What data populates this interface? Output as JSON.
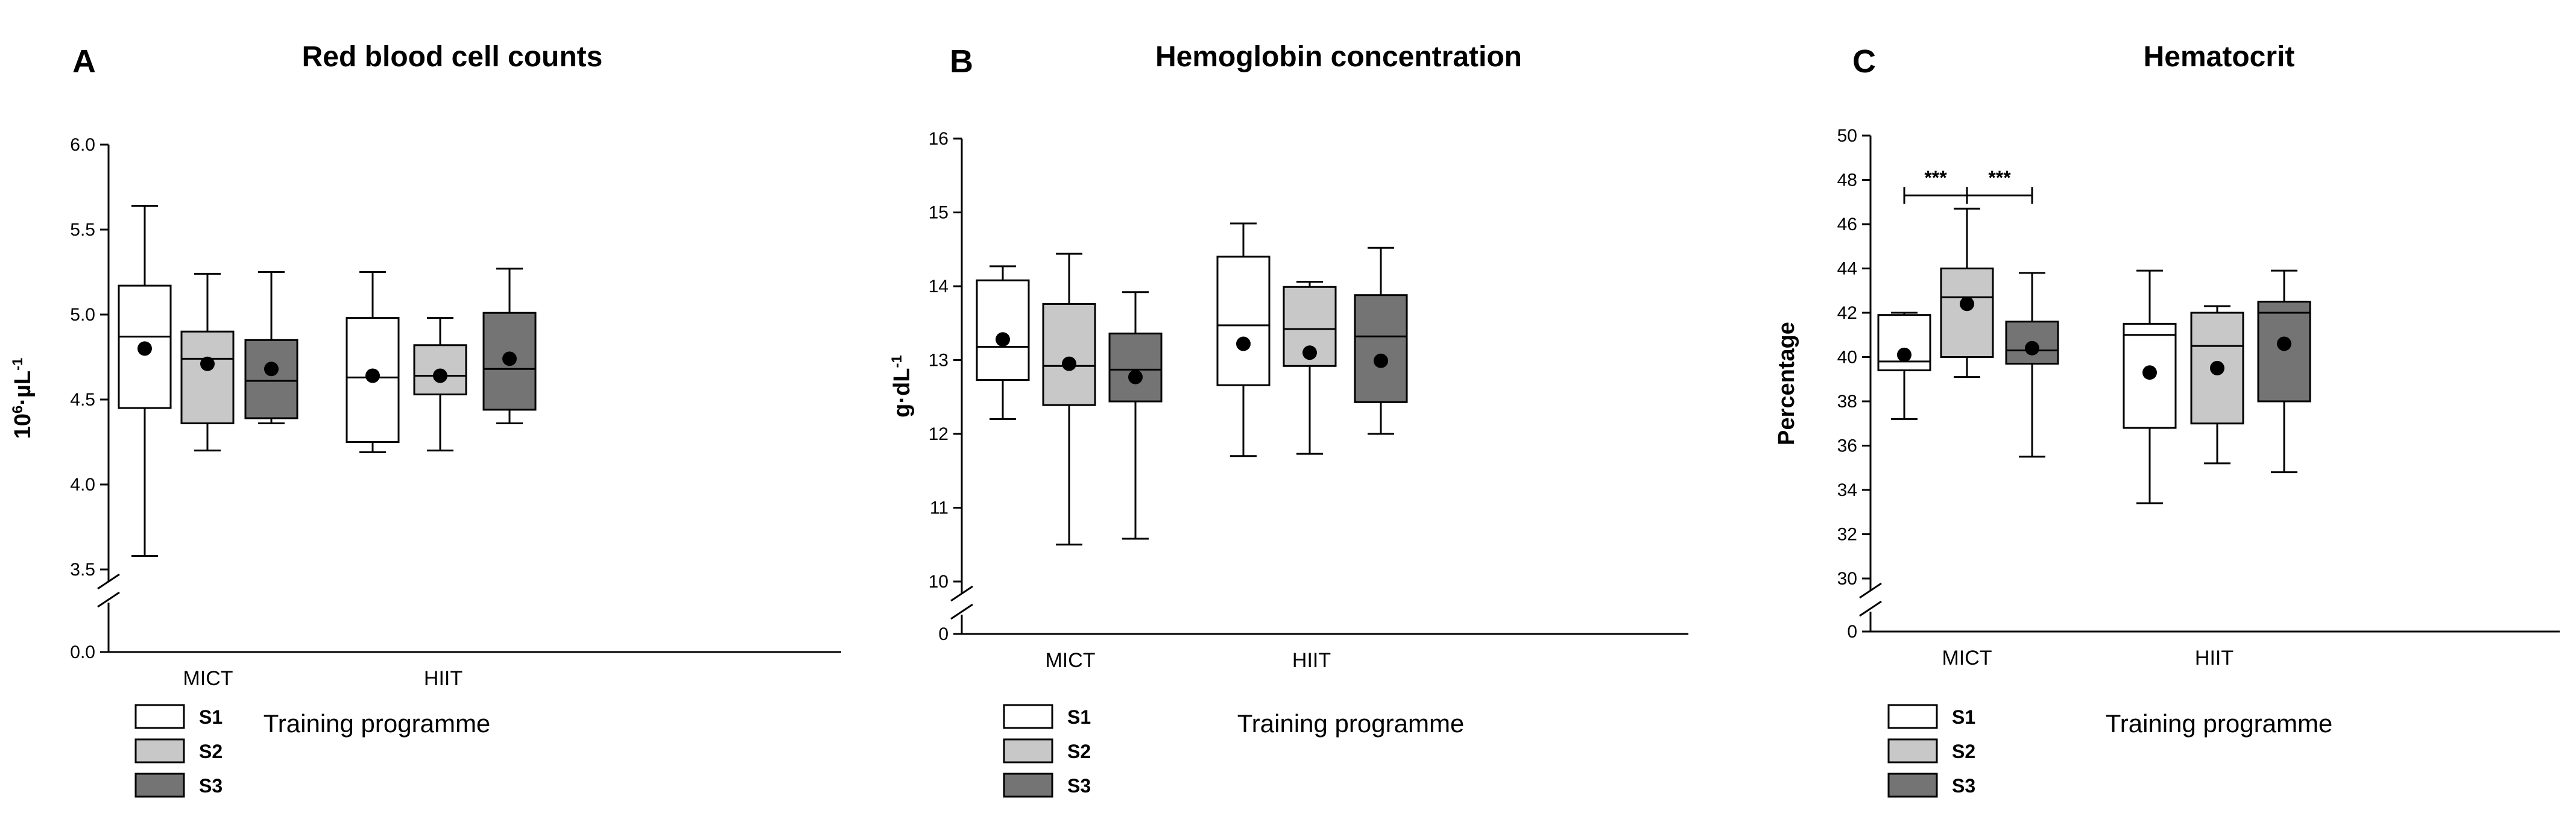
{
  "colors": {
    "S1": "#ffffff",
    "S2": "#c8c8c8",
    "S3": "#747474",
    "stroke": "#000000"
  },
  "chart_data": [
    {
      "id": "A",
      "panel_label": "A",
      "type": "box",
      "title": "Red blood cell counts",
      "ylabel_main": "10",
      "ylabel_sup1": "6",
      "ylabel_mid": "·µL",
      "ylabel_sup2": "-1",
      "xlabel": "Training programme",
      "yticks": [
        "6.0",
        "5.5",
        "5.0",
        "4.5",
        "4.0",
        "3.5"
      ],
      "ybreak_tick": "0.0",
      "ylim": [
        3.5,
        6.0
      ],
      "axis_break": true,
      "categories": [
        "MICT",
        "HIIT"
      ],
      "legend": [
        "S1",
        "S2",
        "S3"
      ],
      "series": [
        {
          "name": "S1",
          "boxes": [
            {
              "min": 3.58,
              "q1": 4.45,
              "median": 4.87,
              "q3": 5.17,
              "max": 5.64,
              "mean": 4.8
            },
            {
              "min": 4.19,
              "q1": 4.25,
              "median": 4.63,
              "q3": 4.98,
              "max": 5.25,
              "mean": 4.64
            }
          ]
        },
        {
          "name": "S2",
          "boxes": [
            {
              "min": 4.2,
              "q1": 4.36,
              "median": 4.74,
              "q3": 4.9,
              "max": 5.24,
              "mean": 4.71
            },
            {
              "min": 4.2,
              "q1": 4.53,
              "median": 4.64,
              "q3": 4.82,
              "max": 4.98,
              "mean": 4.64
            }
          ]
        },
        {
          "name": "S3",
          "boxes": [
            {
              "min": 4.36,
              "q1": 4.39,
              "median": 4.61,
              "q3": 4.85,
              "max": 5.25,
              "mean": 4.68
            },
            {
              "min": 4.36,
              "q1": 4.44,
              "median": 4.68,
              "q3": 5.01,
              "max": 5.27,
              "mean": 4.74
            }
          ]
        }
      ]
    },
    {
      "id": "B",
      "panel_label": "B",
      "type": "box",
      "title": "Hemoglobin concentration",
      "ylabel_main": "g·dL",
      "ylabel_sup2": "-1",
      "xlabel": "Training programme",
      "yticks": [
        "16",
        "15",
        "14",
        "13",
        "12",
        "11",
        "10"
      ],
      "ybreak_tick": "0",
      "ylim": [
        10,
        16
      ],
      "axis_break": true,
      "categories": [
        "MICT",
        "HIIT"
      ],
      "legend": [
        "S1",
        "S2",
        "S3"
      ],
      "series": [
        {
          "name": "S1",
          "boxes": [
            {
              "min": 12.2,
              "q1": 12.73,
              "median": 13.18,
              "q3": 14.08,
              "max": 14.27,
              "mean": 13.28
            },
            {
              "min": 11.7,
              "q1": 12.66,
              "median": 13.47,
              "q3": 14.4,
              "max": 14.85,
              "mean": 13.22
            }
          ]
        },
        {
          "name": "S2",
          "boxes": [
            {
              "min": 10.5,
              "q1": 12.39,
              "median": 12.92,
              "q3": 13.76,
              "max": 14.44,
              "mean": 12.95
            },
            {
              "min": 11.73,
              "q1": 12.92,
              "median": 13.42,
              "q3": 13.99,
              "max": 14.06,
              "mean": 13.1
            }
          ]
        },
        {
          "name": "S3",
          "boxes": [
            {
              "min": 10.58,
              "q1": 12.44,
              "median": 12.87,
              "q3": 13.36,
              "max": 13.92,
              "mean": 12.77
            },
            {
              "min": 12.0,
              "q1": 12.43,
              "median": 13.32,
              "q3": 13.88,
              "max": 14.52,
              "mean": 12.99
            }
          ]
        }
      ]
    },
    {
      "id": "C",
      "panel_label": "C",
      "type": "box",
      "title": "Hematocrit",
      "ylabel_main": "Percentage",
      "xlabel": "Training programme",
      "yticks": [
        "50",
        "48",
        "46",
        "44",
        "42",
        "40",
        "38",
        "36",
        "34",
        "32",
        "30"
      ],
      "ybreak_tick": "0",
      "ylim": [
        30,
        50
      ],
      "axis_break": true,
      "categories": [
        "MICT",
        "HIIT"
      ],
      "legend": [
        "S1",
        "S2",
        "S3"
      ],
      "series": [
        {
          "name": "S1",
          "boxes": [
            {
              "min": 37.2,
              "q1": 39.4,
              "median": 39.8,
              "q3": 41.9,
              "max": 42.0,
              "mean": 40.1
            },
            {
              "min": 33.4,
              "q1": 36.8,
              "median": 41.0,
              "q3": 41.5,
              "max": 43.9,
              "mean": 39.3
            }
          ]
        },
        {
          "name": "S2",
          "boxes": [
            {
              "min": 39.1,
              "q1": 40.0,
              "median": 42.7,
              "q3": 44.0,
              "max": 46.7,
              "mean": 42.4
            },
            {
              "min": 35.2,
              "q1": 37.0,
              "median": 40.5,
              "q3": 42.0,
              "max": 42.3,
              "mean": 39.5
            }
          ]
        },
        {
          "name": "S3",
          "boxes": [
            {
              "min": 35.5,
              "q1": 39.7,
              "median": 40.3,
              "q3": 41.6,
              "max": 43.8,
              "mean": 40.4
            },
            {
              "min": 34.8,
              "q1": 38.0,
              "median": 42.0,
              "q3": 42.5,
              "max": 43.9,
              "mean": 40.6
            }
          ]
        }
      ],
      "significance": [
        {
          "from_series": 0,
          "to_series": 1,
          "category": 0,
          "y": 47.3,
          "label": "***"
        },
        {
          "from_series": 1,
          "to_series": 2,
          "category": 0,
          "y": 47.3,
          "label": "***"
        }
      ]
    }
  ]
}
